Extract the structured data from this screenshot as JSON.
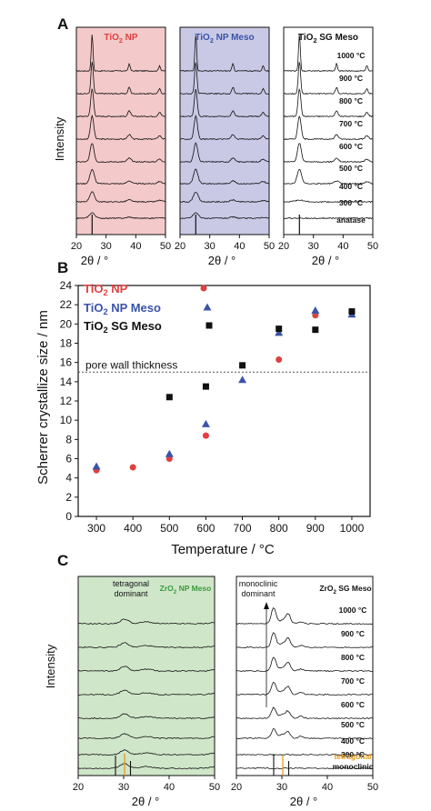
{
  "panel_letters": {
    "a": "A",
    "b": "B",
    "c": "C"
  },
  "colors": {
    "red": "#e04040",
    "blue": "#3a54a8",
    "black": "#111111",
    "pink_bg": "#f3c9c9",
    "blue_bg": "#c9c9e6",
    "green_bg": "#cfe6c9",
    "green_text": "#3c9a3c",
    "orange": "#e39a1f"
  },
  "panel_a": {
    "ylabel": "Intensity",
    "xlabel": "2θ / °",
    "xticks": [
      "20",
      "30",
      "40",
      "50"
    ],
    "subplots": [
      {
        "title_main": "TiO",
        "title_sub": "2",
        "title_rest": " NP",
        "title_color": "#e04040"
      },
      {
        "title_main": "TiO",
        "title_sub": "2",
        "title_rest": " NP Meso",
        "title_color": "#3a54a8"
      },
      {
        "title_main": "TiO",
        "title_sub": "2",
        "title_rest": " SG Meso",
        "title_color": "#111111"
      }
    ],
    "temps": [
      "1000 °C",
      "900 °C",
      "800 °C",
      "700 °C",
      "600 °C",
      "500 °C",
      "400 °C",
      "300 °C"
    ],
    "reference": "anatase"
  },
  "panel_b": {
    "chart_data": {
      "type": "scatter",
      "title": "",
      "xlabel": "Temperature / °C",
      "ylabel": "Scherrer crystallize size / nm",
      "xlim": [
        250,
        1050
      ],
      "ylim": [
        0,
        24
      ],
      "xticks": [
        300,
        400,
        500,
        600,
        700,
        800,
        900,
        1000
      ],
      "yticks": [
        0,
        2,
        4,
        6,
        8,
        10,
        12,
        14,
        16,
        18,
        20,
        22,
        24
      ],
      "reference_line": {
        "y": 15,
        "label": "pore wall thickness"
      },
      "series": [
        {
          "name_main": "TiO",
          "name_sub": "2",
          "name_rest": " NP",
          "marker": "circle",
          "color": "#e04040",
          "x": [
            300,
            400,
            500,
            600,
            800,
            900,
            1000
          ],
          "y": [
            4.8,
            5.1,
            6.0,
            8.4,
            16.3,
            20.9,
            21.2
          ]
        },
        {
          "name_main": "TiO",
          "name_sub": "2",
          "name_rest": " NP Meso",
          "marker": "triangle",
          "color": "#3a54a8",
          "x": [
            300,
            500,
            600,
            700,
            800,
            900,
            1000
          ],
          "y": [
            5.2,
            6.5,
            9.6,
            14.2,
            19.1,
            21.4,
            21.0
          ]
        },
        {
          "name_main": "TiO",
          "name_sub": "2",
          "name_rest": " SG Meso",
          "marker": "square",
          "color": "#111111",
          "x": [
            500,
            600,
            700,
            800,
            900,
            1000
          ],
          "y": [
            12.4,
            13.5,
            15.7,
            19.5,
            19.4,
            21.3
          ]
        }
      ]
    }
  },
  "panel_c": {
    "ylabel": "Intensity",
    "xlabel": "2θ / °",
    "xticks": [
      "20",
      "30",
      "40",
      "50"
    ],
    "left": {
      "title_main": "ZrO",
      "title_sub": "2",
      "title_rest": " NP Meso",
      "annotation_line1": "tetragonal",
      "annotation_line2": "dominant"
    },
    "right": {
      "title_main": "ZrO",
      "title_sub": "2",
      "title_rest": " SG Meso",
      "annotation_line1": "monoclinic",
      "annotation_line2": "dominant"
    },
    "temps": [
      "1000 °C",
      "900 °C",
      "800 °C",
      "700 °C",
      "600 °C",
      "500 °C",
      "400 °C",
      "300 °C"
    ],
    "reference_tetragonal": "tetragonal",
    "reference_monoclinic": "monoclinic"
  }
}
